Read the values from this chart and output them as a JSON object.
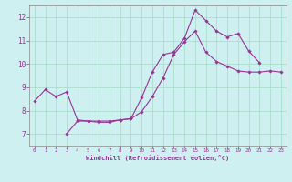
{
  "xlabel": "Windchill (Refroidissement éolien,°C)",
  "background_color": "#cff0f0",
  "grid_color": "#aaddcc",
  "line_color": "#993399",
  "spine_color": "#888888",
  "xlim": [
    -0.5,
    23.5
  ],
  "ylim": [
    6.5,
    12.5
  ],
  "xticks": [
    0,
    1,
    2,
    3,
    4,
    5,
    6,
    7,
    8,
    9,
    10,
    11,
    12,
    13,
    14,
    15,
    16,
    17,
    18,
    19,
    20,
    21,
    22,
    23
  ],
  "yticks": [
    7,
    8,
    9,
    10,
    11,
    12
  ],
  "series1_x": [
    0,
    1,
    2,
    3,
    4,
    5,
    6,
    7,
    8,
    9,
    10,
    11,
    12,
    13,
    14,
    15,
    16,
    17,
    18,
    19,
    20,
    21
  ],
  "series1_y": [
    8.4,
    8.9,
    8.6,
    8.8,
    7.6,
    7.55,
    7.55,
    7.55,
    7.6,
    7.65,
    8.55,
    9.65,
    10.4,
    10.5,
    11.1,
    12.3,
    11.85,
    11.4,
    11.15,
    11.3,
    10.55,
    10.05
  ],
  "series2_x": [
    3,
    4,
    5,
    6,
    7,
    8,
    9,
    10,
    11,
    12,
    13,
    14,
    15,
    16,
    17,
    18,
    19,
    20,
    21,
    22,
    23
  ],
  "series2_y": [
    7.0,
    7.55,
    7.55,
    7.5,
    7.5,
    7.6,
    7.65,
    7.95,
    8.6,
    9.4,
    10.4,
    10.95,
    11.4,
    10.5,
    10.1,
    9.9,
    9.7,
    9.65,
    9.65,
    9.7,
    9.65
  ]
}
